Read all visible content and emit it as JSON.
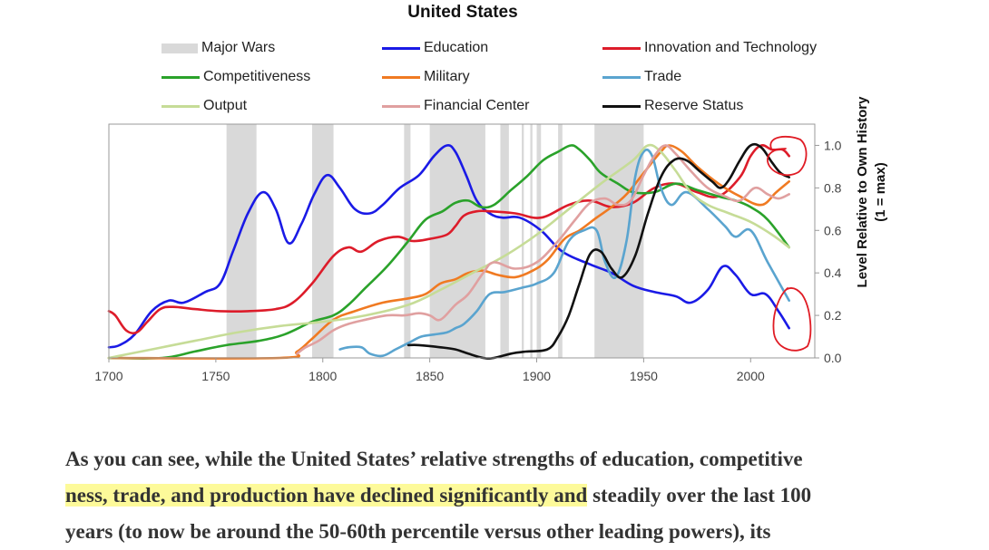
{
  "chart_data": {
    "type": "line",
    "title": "United States",
    "xlabel": "",
    "ylabel": "Level Relative to Own History",
    "ylabel2": "(1 = max)",
    "xlim": [
      1700,
      2030
    ],
    "ylim": [
      0,
      1.1
    ],
    "x_ticks": [
      "1700",
      "1750",
      "1800",
      "1850",
      "1900",
      "1950",
      "2000"
    ],
    "y_ticks": [
      "0.0",
      "0.2",
      "0.4",
      "0.6",
      "0.8",
      "1.0"
    ],
    "y_axis_side": "right",
    "legend_columns": 3,
    "wars_label": "Major Wars",
    "wars_color": "#d9d9d9",
    "wars": [
      [
        1755,
        1769
      ],
      [
        1795,
        1805
      ],
      [
        1838,
        1841
      ],
      [
        1850,
        1876
      ],
      [
        1883,
        1887
      ],
      [
        1893,
        1894
      ],
      [
        1897,
        1898
      ],
      [
        1900,
        1902
      ],
      [
        1910,
        1912
      ],
      [
        1927,
        1950
      ]
    ],
    "series": [
      {
        "name": "Education",
        "color": "#1a1ae6",
        "x": [
          1700,
          1705,
          1712,
          1720,
          1728,
          1735,
          1745,
          1752,
          1758,
          1765,
          1772,
          1778,
          1784,
          1790,
          1796,
          1802,
          1808,
          1815,
          1822,
          1828,
          1836,
          1845,
          1852,
          1858,
          1862,
          1867,
          1872,
          1878,
          1884,
          1892,
          1902,
          1912,
          1925,
          1935,
          1945,
          1955,
          1965,
          1972,
          1980,
          1987,
          1993,
          2000,
          2007,
          2013,
          2018
        ],
        "y": [
          0.05,
          0.06,
          0.11,
          0.22,
          0.27,
          0.26,
          0.31,
          0.35,
          0.5,
          0.68,
          0.78,
          0.7,
          0.54,
          0.63,
          0.77,
          0.86,
          0.8,
          0.7,
          0.68,
          0.72,
          0.8,
          0.86,
          0.95,
          1.0,
          0.97,
          0.86,
          0.74,
          0.68,
          0.66,
          0.66,
          0.6,
          0.5,
          0.44,
          0.4,
          0.34,
          0.31,
          0.29,
          0.26,
          0.32,
          0.43,
          0.39,
          0.3,
          0.3,
          0.22,
          0.14
        ]
      },
      {
        "name": "Innovation and Technology",
        "color": "#dd1c2a",
        "x": [
          1700,
          1703,
          1708,
          1713,
          1718,
          1724,
          1730,
          1740,
          1752,
          1765,
          1778,
          1786,
          1795,
          1805,
          1812,
          1818,
          1826,
          1835,
          1842,
          1850,
          1858,
          1862,
          1866,
          1872,
          1878,
          1890,
          1902,
          1915,
          1925,
          1935,
          1945,
          1955,
          1965,
          1975,
          1985,
          1995,
          2000,
          2005,
          2010,
          2015,
          2018
        ],
        "y": [
          0.22,
          0.2,
          0.13,
          0.12,
          0.17,
          0.23,
          0.24,
          0.23,
          0.22,
          0.22,
          0.23,
          0.26,
          0.35,
          0.48,
          0.52,
          0.5,
          0.55,
          0.57,
          0.55,
          0.56,
          0.58,
          0.62,
          0.67,
          0.69,
          0.69,
          0.68,
          0.66,
          0.72,
          0.74,
          0.71,
          0.73,
          0.8,
          0.82,
          0.78,
          0.76,
          0.85,
          0.95,
          1.0,
          0.98,
          0.98,
          0.95
        ]
      },
      {
        "name": "Competitiveness",
        "color": "#2aa22a",
        "x": [
          1700,
          1725,
          1740,
          1755,
          1770,
          1782,
          1795,
          1805,
          1812,
          1820,
          1830,
          1840,
          1848,
          1856,
          1862,
          1868,
          1874,
          1880,
          1888,
          1895,
          1903,
          1910,
          1916,
          1920,
          1925,
          1930,
          1938,
          1945,
          1955,
          1965,
          1975,
          1985,
          1993,
          2000,
          2008,
          2018
        ],
        "y": [
          0,
          0,
          0.03,
          0.06,
          0.08,
          0.11,
          0.17,
          0.2,
          0.25,
          0.33,
          0.43,
          0.55,
          0.65,
          0.69,
          0.73,
          0.74,
          0.71,
          0.72,
          0.79,
          0.85,
          0.93,
          0.97,
          1.0,
          0.98,
          0.93,
          0.87,
          0.82,
          0.78,
          0.78,
          0.82,
          0.79,
          0.76,
          0.74,
          0.71,
          0.65,
          0.52
        ]
      },
      {
        "name": "Military",
        "color": "#f07a22",
        "x": [
          1700,
          1780,
          1788,
          1795,
          1805,
          1815,
          1828,
          1840,
          1848,
          1855,
          1862,
          1868,
          1875,
          1882,
          1890,
          1898,
          1905,
          1913,
          1920,
          1928,
          1935,
          1942,
          1950,
          1958,
          1962,
          1968,
          1975,
          1985,
          1995,
          2005,
          2012,
          2018
        ],
        "y": [
          0,
          0,
          0.03,
          0.09,
          0.18,
          0.22,
          0.26,
          0.28,
          0.3,
          0.35,
          0.37,
          0.4,
          0.41,
          0.39,
          0.38,
          0.41,
          0.46,
          0.56,
          0.6,
          0.66,
          0.71,
          0.77,
          0.87,
          0.97,
          1.0,
          0.97,
          0.9,
          0.82,
          0.76,
          0.72,
          0.78,
          0.83
        ]
      },
      {
        "name": "Trade",
        "color": "#5aa4cf",
        "x": [
          1808,
          1812,
          1818,
          1822,
          1828,
          1834,
          1840,
          1846,
          1852,
          1858,
          1862,
          1866,
          1872,
          1878,
          1885,
          1893,
          1900,
          1908,
          1915,
          1922,
          1928,
          1932,
          1937,
          1942,
          1946,
          1950,
          1954,
          1958,
          1963,
          1970,
          1980,
          1988,
          1993,
          2000,
          2008,
          2018
        ],
        "y": [
          0.04,
          0.05,
          0.05,
          0.02,
          0.01,
          0.04,
          0.07,
          0.1,
          0.11,
          0.12,
          0.14,
          0.16,
          0.22,
          0.3,
          0.31,
          0.33,
          0.35,
          0.4,
          0.55,
          0.6,
          0.6,
          0.45,
          0.38,
          0.55,
          0.85,
          0.97,
          0.95,
          0.8,
          0.72,
          0.78,
          0.7,
          0.62,
          0.57,
          0.6,
          0.45,
          0.27
        ]
      },
      {
        "name": "Output",
        "color": "#c6dc97",
        "x": [
          1700,
          1720,
          1740,
          1760,
          1780,
          1800,
          1820,
          1840,
          1855,
          1870,
          1885,
          1900,
          1915,
          1930,
          1945,
          1952,
          1958,
          1965,
          1972,
          1980,
          1990,
          2000,
          2010,
          2018
        ],
        "y": [
          0,
          0.04,
          0.08,
          0.12,
          0.15,
          0.17,
          0.2,
          0.25,
          0.32,
          0.4,
          0.48,
          0.58,
          0.7,
          0.82,
          0.93,
          1.0,
          0.97,
          0.88,
          0.78,
          0.72,
          0.68,
          0.64,
          0.58,
          0.52
        ]
      },
      {
        "name": "Financial Center",
        "color": "#e0a0a0",
        "x": [
          1788,
          1792,
          1798,
          1805,
          1812,
          1820,
          1830,
          1838,
          1845,
          1850,
          1855,
          1862,
          1868,
          1875,
          1880,
          1890,
          1900,
          1910,
          1918,
          1925,
          1932,
          1938,
          1944,
          1950,
          1955,
          1960,
          1965,
          1972,
          1980,
          1988,
          1995,
          2002,
          2008,
          2013,
          2018
        ],
        "y": [
          0.02,
          0.05,
          0.08,
          0.13,
          0.16,
          0.18,
          0.2,
          0.2,
          0.21,
          0.2,
          0.18,
          0.25,
          0.3,
          0.4,
          0.45,
          0.42,
          0.45,
          0.55,
          0.65,
          0.73,
          0.75,
          0.72,
          0.74,
          0.86,
          0.95,
          1.0,
          0.96,
          0.88,
          0.8,
          0.76,
          0.74,
          0.8,
          0.77,
          0.75,
          0.77
        ]
      },
      {
        "name": "Reserve Status",
        "color": "#111111",
        "x": [
          1840,
          1845,
          1855,
          1862,
          1868,
          1875,
          1880,
          1888,
          1895,
          1905,
          1910,
          1915,
          1920,
          1925,
          1930,
          1935,
          1940,
          1946,
          1952,
          1958,
          1964,
          1970,
          1976,
          1982,
          1986,
          1990,
          1995,
          2000,
          2005,
          2010,
          2014,
          2018
        ],
        "y": [
          0.06,
          0.06,
          0.05,
          0.04,
          0.02,
          0.0,
          0.0,
          0.02,
          0.03,
          0.04,
          0.1,
          0.2,
          0.35,
          0.49,
          0.5,
          0.42,
          0.38,
          0.48,
          0.68,
          0.85,
          0.93,
          0.93,
          0.88,
          0.83,
          0.8,
          0.84,
          0.93,
          1.0,
          0.99,
          0.92,
          0.87,
          0.85
        ]
      }
    ]
  },
  "annotations": {
    "circle_color": "#e01b24"
  },
  "caption": {
    "line1": "As you can see, while the United States’ relative strengths of education, competitive",
    "line2_highlight": "ness, trade, and production have declined significantly and",
    "line2_rest": " steadily over the last 100",
    "line3": "years (to now be around the 50-60th percentile versus other leading powers), its"
  }
}
